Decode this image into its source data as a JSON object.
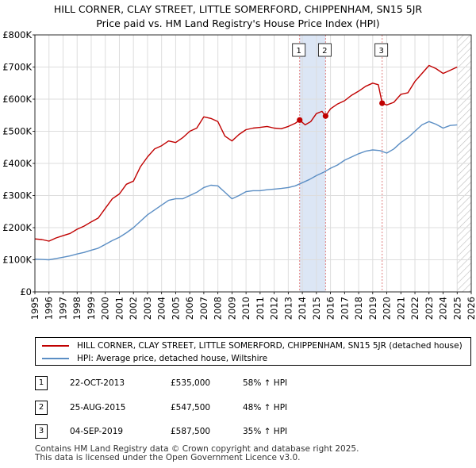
{
  "title": {
    "line1": "HILL CORNER, CLAY STREET, LITTLE SOMERFORD, CHIPPENHAM, SN15 5JR",
    "line2": "Price paid vs. HM Land Registry's House Price Index (HPI)"
  },
  "colors": {
    "property": "#c00000",
    "hpi": "#5b8ec4",
    "shade": "#dce6f5",
    "hatch": "#bbbbbb",
    "vline": "#e08080",
    "grid": "#dddddd"
  },
  "legend": {
    "property_label": "HILL CORNER, CLAY STREET, LITTLE SOMERFORD, CHIPPENHAM, SN15 5JR (detached house)",
    "hpi_label": "HPI: Average price, detached house, Wiltshire"
  },
  "sales": [
    {
      "num": "1",
      "date": "22-OCT-2013",
      "price": "£535,000",
      "hpi": "58% ↑ HPI"
    },
    {
      "num": "2",
      "date": "25-AUG-2015",
      "price": "£547,500",
      "hpi": "48% ↑ HPI"
    },
    {
      "num": "3",
      "date": "04-SEP-2019",
      "price": "£587,500",
      "hpi": "35% ↑ HPI"
    }
  ],
  "footer": {
    "line1": "Contains HM Land Registry data © Crown copyright and database right 2025.",
    "line2": "This data is licensed under the Open Government Licence v3.0."
  },
  "chart_data": {
    "type": "line",
    "x_range": [
      1995,
      2026
    ],
    "ylim": [
      0,
      800000
    ],
    "y_ticks": [
      0,
      100000,
      200000,
      300000,
      400000,
      500000,
      600000,
      700000,
      800000
    ],
    "y_tick_labels": [
      "£0",
      "£100K",
      "£200K",
      "£300K",
      "£400K",
      "£500K",
      "£600K",
      "£700K",
      "£800K"
    ],
    "x_ticks": [
      1995,
      1996,
      1997,
      1998,
      1999,
      2000,
      2001,
      2002,
      2003,
      2004,
      2005,
      2006,
      2007,
      2008,
      2009,
      2010,
      2011,
      2012,
      2013,
      2014,
      2015,
      2016,
      2017,
      2018,
      2019,
      2020,
      2021,
      2022,
      2023,
      2024,
      2025,
      2026
    ],
    "x_tick_labels": [
      "1995",
      "1996",
      "1997",
      "1998",
      "1999",
      "2000",
      "2001",
      "2002",
      "2003",
      "2004",
      "2005",
      "2006",
      "2007",
      "2008",
      "2009",
      "2010",
      "2011",
      "2012",
      "2013",
      "2014",
      "2015",
      "2016",
      "2017",
      "2018",
      "2019",
      "2020",
      "2021",
      "2022",
      "2023",
      "2024",
      "2025",
      "2026"
    ],
    "shaded_span": [
      2013.81,
      2015.65
    ],
    "hatched_from": 2025.0,
    "sale_markers": [
      {
        "label": "1",
        "x": 2013.81,
        "y": 535000
      },
      {
        "label": "2",
        "x": 2015.65,
        "y": 547500
      },
      {
        "label": "3",
        "x": 2019.67,
        "y": 587500
      }
    ],
    "series": [
      {
        "name": "HILL CORNER, CLAY STREET, LITTLE SOMERFORD, CHIPPENHAM, SN15 5JR (detached house)",
        "x": [
          1995.0,
          1995.5,
          1996.0,
          1996.5,
          1997.0,
          1997.5,
          1998.0,
          1998.5,
          1999.0,
          1999.5,
          2000.0,
          2000.5,
          2001.0,
          2001.5,
          2002.0,
          2002.5,
          2003.0,
          2003.5,
          2004.0,
          2004.5,
          2005.0,
          2005.5,
          2006.0,
          2006.5,
          2007.0,
          2007.5,
          2008.0,
          2008.5,
          2009.0,
          2009.5,
          2010.0,
          2010.5,
          2011.0,
          2011.5,
          2012.0,
          2012.5,
          2013.0,
          2013.5,
          2013.81,
          2014.2,
          2014.6,
          2015.0,
          2015.4,
          2015.65,
          2016.0,
          2016.5,
          2017.0,
          2017.5,
          2018.0,
          2018.5,
          2019.0,
          2019.4,
          2019.67,
          2020.0,
          2020.5,
          2021.0,
          2021.5,
          2022.0,
          2022.5,
          2023.0,
          2023.5,
          2024.0,
          2024.5,
          2025.0
        ],
        "y": [
          165000,
          163000,
          158000,
          168000,
          175000,
          182000,
          195000,
          205000,
          218000,
          230000,
          260000,
          290000,
          305000,
          335000,
          345000,
          390000,
          420000,
          445000,
          455000,
          470000,
          465000,
          480000,
          500000,
          510000,
          545000,
          540000,
          530000,
          485000,
          470000,
          490000,
          505000,
          510000,
          512000,
          515000,
          510000,
          508000,
          515000,
          525000,
          535000,
          520000,
          530000,
          555000,
          562000,
          547500,
          570000,
          585000,
          595000,
          612000,
          625000,
          640000,
          650000,
          645000,
          587500,
          582000,
          590000,
          615000,
          620000,
          655000,
          680000,
          705000,
          695000,
          680000,
          690000,
          700000
        ]
      },
      {
        "name": "HPI: Average price, detached house, Wiltshire",
        "x": [
          1995.0,
          1995.5,
          1996.0,
          1996.5,
          1997.0,
          1997.5,
          1998.0,
          1998.5,
          1999.0,
          1999.5,
          2000.0,
          2000.5,
          2001.0,
          2001.5,
          2002.0,
          2002.5,
          2003.0,
          2003.5,
          2004.0,
          2004.5,
          2005.0,
          2005.5,
          2006.0,
          2006.5,
          2007.0,
          2007.5,
          2008.0,
          2008.5,
          2009.0,
          2009.5,
          2010.0,
          2010.5,
          2011.0,
          2011.5,
          2012.0,
          2012.5,
          2013.0,
          2013.5,
          2014.0,
          2014.5,
          2015.0,
          2015.5,
          2016.0,
          2016.5,
          2017.0,
          2017.5,
          2018.0,
          2018.5,
          2019.0,
          2019.5,
          2020.0,
          2020.5,
          2021.0,
          2021.5,
          2022.0,
          2022.5,
          2023.0,
          2023.5,
          2024.0,
          2024.5,
          2025.0
        ],
        "y": [
          102000,
          101000,
          100000,
          104000,
          108000,
          112000,
          118000,
          123000,
          130000,
          136000,
          148000,
          160000,
          170000,
          184000,
          200000,
          220000,
          240000,
          255000,
          270000,
          285000,
          290000,
          290000,
          300000,
          310000,
          325000,
          332000,
          330000,
          310000,
          290000,
          300000,
          312000,
          315000,
          315000,
          318000,
          320000,
          322000,
          325000,
          330000,
          340000,
          350000,
          362000,
          372000,
          385000,
          395000,
          410000,
          420000,
          430000,
          438000,
          442000,
          440000,
          432000,
          445000,
          465000,
          480000,
          500000,
          520000,
          530000,
          522000,
          510000,
          518000,
          520000
        ]
      }
    ]
  }
}
